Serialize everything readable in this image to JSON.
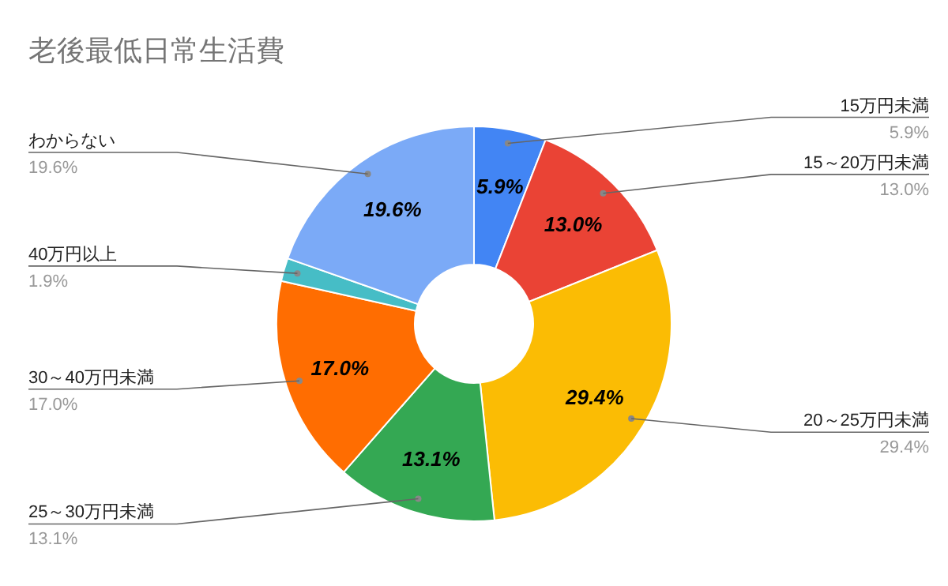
{
  "chart_data": {
    "type": "donut",
    "title": "老後最低日常生活費",
    "categories": [
      "15万円未満",
      "15～20万円未満",
      "20～25万円未満",
      "25～30万円未満",
      "30～40万円未満",
      "40万円以上",
      "わからない"
    ],
    "values": [
      5.9,
      13.0,
      29.4,
      13.1,
      17.0,
      1.9,
      19.6
    ],
    "colors": [
      "#4285f4",
      "#ea4335",
      "#fbbc04",
      "#34a853",
      "#ff6d01",
      "#46bdc6",
      "#7baaf7"
    ],
    "value_labels": [
      "5.9%",
      "13.0%",
      "29.4%",
      "13.1%",
      "17.0%",
      "1.9%",
      "19.6%"
    ]
  }
}
